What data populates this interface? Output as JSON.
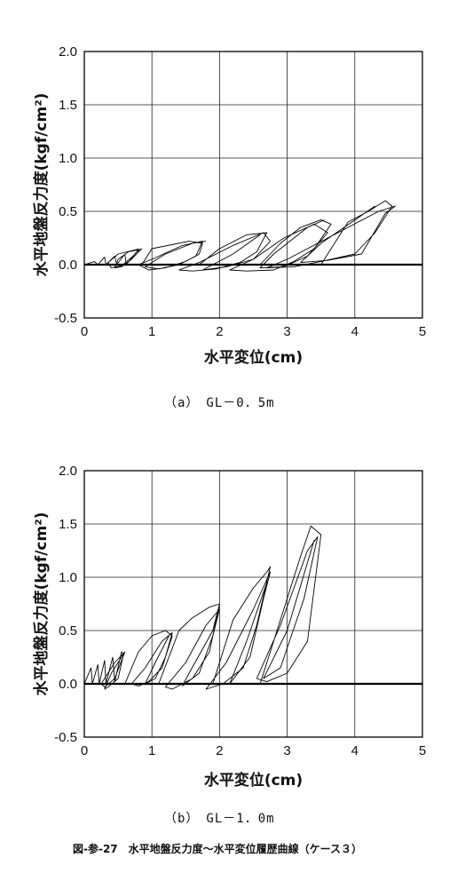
{
  "figure_caption": "図-参-27　水平地盤反力度～水平変位履歴曲線（ケース３）",
  "chart_data": [
    {
      "type": "line",
      "caption": "（a）　GL－0．5m",
      "xlabel": "水平変位(cm)",
      "ylabel": "水平地盤反力度(kgf/cm²)",
      "xlim": [
        0,
        5
      ],
      "ylim": [
        -0.5,
        2.0
      ],
      "xticks": [
        "0",
        "1",
        "2",
        "3",
        "4",
        "5"
      ],
      "yticks": [
        "2.0",
        "1.5",
        "1.0",
        "0.5",
        "0.0",
        "-0.5"
      ],
      "grid": true,
      "series": [
        {
          "x": [
            0.0,
            0.15,
            0.2,
            0.3,
            0.32,
            0.45,
            0.48,
            0.6,
            0.62,
            0.78,
            0.85,
            0.7,
            0.55,
            0.45,
            0.5,
            0.65,
            0.8,
            0.72,
            0.55,
            0.4,
            0.35,
            0.5,
            0.82
          ],
          "y": [
            0.0,
            0.03,
            0.0,
            0.07,
            0.0,
            0.08,
            0.0,
            0.1,
            0.0,
            0.12,
            0.15,
            0.05,
            -0.02,
            -0.03,
            0.05,
            0.12,
            0.14,
            0.08,
            -0.01,
            -0.03,
            0.02,
            0.1,
            0.15
          ]
        },
        {
          "x": [
            0.85,
            1.0,
            1.55,
            1.75,
            1.7,
            1.5,
            1.2,
            0.95,
            0.8,
            1.0,
            1.45,
            1.75,
            1.65,
            1.4,
            1.1,
            0.9,
            1.2,
            1.6,
            1.8
          ],
          "y": [
            0.0,
            0.15,
            0.22,
            0.2,
            0.1,
            0.03,
            -0.03,
            -0.05,
            0.0,
            0.05,
            0.18,
            0.22,
            0.08,
            0.0,
            -0.04,
            -0.02,
            0.1,
            0.2,
            0.22
          ]
        },
        {
          "x": [
            1.7,
            2.0,
            2.4,
            2.7,
            2.55,
            2.3,
            1.95,
            1.6,
            1.4,
            1.7,
            2.2,
            2.65,
            2.75,
            2.5,
            2.1,
            1.75,
            2.2,
            2.6
          ],
          "y": [
            0.0,
            0.15,
            0.28,
            0.3,
            0.12,
            0.02,
            -0.04,
            -0.06,
            -0.05,
            0.02,
            0.18,
            0.3,
            0.22,
            0.05,
            -0.02,
            -0.05,
            0.1,
            0.28
          ]
        },
        {
          "x": [
            2.6,
            2.9,
            3.2,
            3.5,
            3.65,
            3.4,
            3.1,
            2.8,
            2.4,
            2.15,
            2.5,
            2.95,
            3.4,
            3.6,
            3.3,
            2.95,
            2.6,
            2.8,
            3.3,
            3.55
          ],
          "y": [
            0.0,
            0.2,
            0.35,
            0.42,
            0.38,
            0.15,
            0.03,
            -0.05,
            -0.06,
            -0.05,
            0.05,
            0.25,
            0.38,
            0.3,
            0.08,
            -0.02,
            -0.03,
            0.1,
            0.35,
            0.42
          ]
        },
        {
          "x": [
            3.5,
            3.9,
            4.2,
            4.45,
            4.55,
            4.3,
            4.0,
            3.5,
            3.1,
            2.7,
            3.0,
            3.9,
            4.35,
            4.6,
            4.45,
            4.1,
            3.6,
            3.2,
            3.5,
            4.3
          ],
          "y": [
            0.0,
            0.4,
            0.5,
            0.6,
            0.55,
            0.3,
            0.1,
            0.03,
            -0.02,
            -0.03,
            0.05,
            0.35,
            0.5,
            0.55,
            0.48,
            0.1,
            0.04,
            0.02,
            0.2,
            0.55
          ]
        }
      ]
    },
    {
      "type": "line",
      "caption": "（b）　GL－1．0m",
      "xlabel": "水平変位(cm)",
      "ylabel": "水平地盤反力度(kgf/cm²)",
      "xlim": [
        0,
        5
      ],
      "ylim": [
        -0.5,
        2.0
      ],
      "xticks": [
        "0",
        "1",
        "2",
        "3",
        "4",
        "5"
      ],
      "yticks": [
        "2.0",
        "1.5",
        "1.0",
        "0.5",
        "0.0",
        "-0.5"
      ],
      "grid": true,
      "series": [
        {
          "x": [
            0.0,
            0.1,
            0.12,
            0.2,
            0.22,
            0.3,
            0.32,
            0.42,
            0.45,
            0.55,
            0.58,
            0.5,
            0.35,
            0.3,
            0.4,
            0.55,
            0.6,
            0.45,
            0.3,
            0.25,
            0.45,
            0.6
          ],
          "y": [
            0.0,
            0.15,
            0.0,
            0.18,
            0.0,
            0.22,
            0.0,
            0.25,
            0.02,
            0.3,
            0.28,
            0.05,
            -0.03,
            -0.05,
            0.1,
            0.25,
            0.3,
            0.05,
            -0.03,
            0.0,
            0.2,
            0.3
          ]
        },
        {
          "x": [
            0.6,
            0.8,
            1.0,
            1.2,
            1.3,
            1.15,
            0.95,
            0.8,
            0.7,
            0.9,
            1.15,
            1.3,
            1.2,
            1.05,
            0.9,
            1.05,
            1.25
          ],
          "y": [
            0.0,
            0.3,
            0.45,
            0.5,
            0.45,
            0.15,
            0.02,
            -0.02,
            0.0,
            0.15,
            0.4,
            0.48,
            0.25,
            0.05,
            0.0,
            0.2,
            0.45
          ]
        },
        {
          "x": [
            1.1,
            1.4,
            1.6,
            1.85,
            2.0,
            1.85,
            1.6,
            1.3,
            1.2,
            1.5,
            1.8,
            2.0,
            1.9,
            1.7,
            1.45,
            1.55,
            1.9,
            2.0
          ],
          "y": [
            0.0,
            0.5,
            0.62,
            0.72,
            0.75,
            0.3,
            0.05,
            -0.05,
            -0.03,
            0.2,
            0.55,
            0.7,
            0.45,
            0.1,
            -0.02,
            0.1,
            0.5,
            0.75
          ]
        },
        {
          "x": [
            1.9,
            2.2,
            2.5,
            2.7,
            2.75,
            2.55,
            2.35,
            2.05,
            1.8,
            2.1,
            2.5,
            2.75,
            2.65,
            2.45,
            2.15,
            2.4,
            2.7
          ],
          "y": [
            0.0,
            0.6,
            0.9,
            1.05,
            1.1,
            0.55,
            0.15,
            0.0,
            -0.05,
            0.2,
            0.7,
            1.05,
            0.8,
            0.25,
            0.0,
            0.4,
            0.95
          ]
        },
        {
          "x": [
            2.6,
            2.95,
            3.2,
            3.35,
            3.5,
            3.4,
            3.3,
            3.0,
            2.7,
            2.55,
            2.9,
            3.3,
            3.45,
            3.25,
            2.9,
            2.65,
            3.0,
            3.4
          ],
          "y": [
            0.0,
            0.7,
            1.2,
            1.48,
            1.4,
            0.9,
            0.4,
            0.1,
            0.02,
            0.05,
            0.55,
            1.25,
            1.38,
            0.8,
            0.15,
            0.05,
            0.5,
            1.35
          ]
        }
      ]
    }
  ]
}
